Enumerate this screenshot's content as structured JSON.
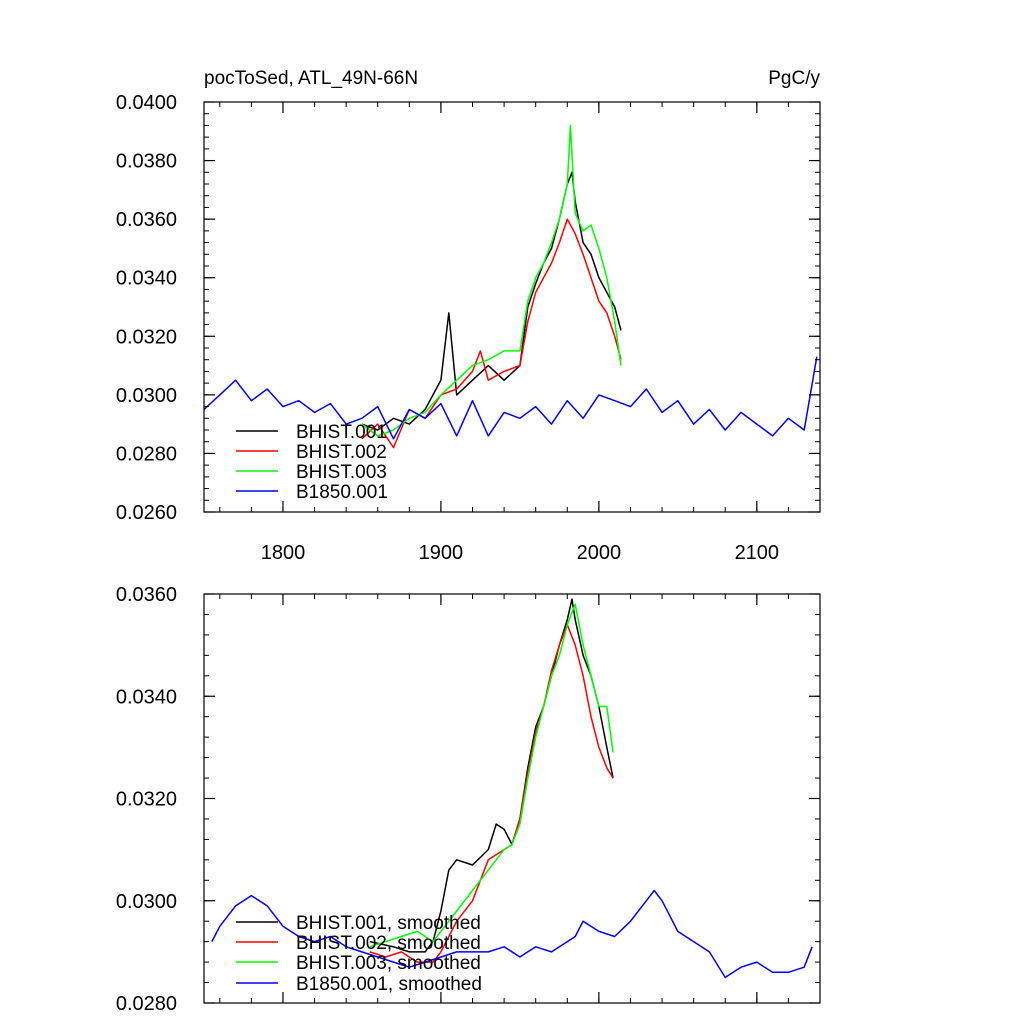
{
  "chart_data": [
    {
      "type": "line",
      "title": "pocToSed, ATL_49N-66N",
      "units": "PgC/y",
      "xlabel": "",
      "ylabel": "",
      "xlim": [
        1750,
        2140
      ],
      "ylim": [
        0.026,
        0.04
      ],
      "x_ticks": [
        1800,
        1900,
        2000,
        2100
      ],
      "y_ticks": [
        0.026,
        0.028,
        0.03,
        0.032,
        0.034,
        0.036,
        0.038,
        0.04
      ],
      "y_tick_labels": [
        "0.0260",
        "0.0280",
        "0.0300",
        "0.0320",
        "0.0340",
        "0.0360",
        "0.0380",
        "0.0400"
      ],
      "legend_position": "bottom-left",
      "series": [
        {
          "name": "BHIST.001",
          "color": "#000000",
          "x": [
            1850,
            1860,
            1870,
            1880,
            1890,
            1900,
            1905,
            1910,
            1920,
            1930,
            1940,
            1950,
            1955,
            1960,
            1965,
            1970,
            1975,
            1980,
            1983,
            1985,
            1990,
            1995,
            2000,
            2005,
            2010,
            2014
          ],
          "y": [
            0.029,
            0.0288,
            0.0292,
            0.029,
            0.0295,
            0.0305,
            0.0328,
            0.03,
            0.0305,
            0.031,
            0.0305,
            0.031,
            0.033,
            0.0338,
            0.0345,
            0.035,
            0.036,
            0.0372,
            0.0376,
            0.0366,
            0.0352,
            0.0348,
            0.034,
            0.0335,
            0.033,
            0.0322
          ]
        },
        {
          "name": "BHIST.002",
          "color": "#ff0000",
          "x": [
            1850,
            1860,
            1870,
            1880,
            1890,
            1900,
            1910,
            1920,
            1925,
            1930,
            1940,
            1950,
            1955,
            1960,
            1965,
            1970,
            1975,
            1980,
            1985,
            1990,
            1995,
            2000,
            2005,
            2010,
            2014
          ],
          "y": [
            0.0285,
            0.029,
            0.0282,
            0.0295,
            0.0292,
            0.03,
            0.0302,
            0.0308,
            0.0315,
            0.0305,
            0.0308,
            0.031,
            0.0325,
            0.0335,
            0.034,
            0.0345,
            0.0352,
            0.036,
            0.0355,
            0.0348,
            0.034,
            0.0332,
            0.0328,
            0.032,
            0.0312
          ]
        },
        {
          "name": "BHIST.003",
          "color": "#00ff00",
          "x": [
            1850,
            1860,
            1870,
            1880,
            1890,
            1900,
            1910,
            1920,
            1930,
            1940,
            1950,
            1955,
            1960,
            1965,
            1970,
            1975,
            1980,
            1982,
            1985,
            1990,
            1995,
            2000,
            2005,
            2010,
            2014
          ],
          "y": [
            0.029,
            0.0286,
            0.0288,
            0.0292,
            0.0294,
            0.03,
            0.0305,
            0.031,
            0.0312,
            0.0315,
            0.0315,
            0.0332,
            0.034,
            0.0345,
            0.0352,
            0.036,
            0.0372,
            0.0392,
            0.0362,
            0.0356,
            0.0358,
            0.035,
            0.034,
            0.0325,
            0.031
          ]
        },
        {
          "name": "B1850.001",
          "color": "#0000ff",
          "x": [
            1750,
            1760,
            1770,
            1780,
            1790,
            1800,
            1810,
            1820,
            1830,
            1840,
            1850,
            1860,
            1870,
            1880,
            1890,
            1900,
            1910,
            1920,
            1930,
            1940,
            1950,
            1960,
            1970,
            1980,
            1990,
            2000,
            2010,
            2020,
            2030,
            2040,
            2050,
            2060,
            2070,
            2080,
            2090,
            2100,
            2110,
            2120,
            2130,
            2138
          ],
          "y": [
            0.0295,
            0.03,
            0.0305,
            0.0298,
            0.0302,
            0.0296,
            0.0298,
            0.0294,
            0.0297,
            0.029,
            0.0292,
            0.0296,
            0.0285,
            0.0295,
            0.0292,
            0.0297,
            0.0286,
            0.0298,
            0.0286,
            0.0294,
            0.0292,
            0.0296,
            0.029,
            0.0298,
            0.0292,
            0.03,
            0.0298,
            0.0296,
            0.0302,
            0.0294,
            0.0298,
            0.029,
            0.0295,
            0.0288,
            0.0294,
            0.029,
            0.0286,
            0.0292,
            0.0288,
            0.0313
          ]
        }
      ]
    },
    {
      "type": "line",
      "title": "",
      "xlabel": "",
      "ylabel": "",
      "xlim": [
        1750,
        2140
      ],
      "ylim": [
        0.028,
        0.036
      ],
      "x_ticks": [
        1800,
        1900,
        2000,
        2100
      ],
      "y_ticks": [
        0.028,
        0.03,
        0.032,
        0.034,
        0.036
      ],
      "y_tick_labels": [
        "0.0280",
        "0.0300",
        "0.0320",
        "0.0340",
        "0.0360"
      ],
      "legend_position": "bottom-left",
      "series": [
        {
          "name": "BHIST.001, smoothed",
          "color": "#000000",
          "x": [
            1855,
            1870,
            1880,
            1890,
            1895,
            1900,
            1905,
            1910,
            1920,
            1930,
            1935,
            1940,
            1945,
            1950,
            1955,
            1960,
            1965,
            1970,
            1975,
            1980,
            1983,
            1985,
            1990,
            1995,
            2000,
            2005,
            2009
          ],
          "y": [
            0.0292,
            0.0291,
            0.029,
            0.029,
            0.0292,
            0.0298,
            0.0306,
            0.0308,
            0.0307,
            0.031,
            0.0315,
            0.0314,
            0.0311,
            0.0316,
            0.0326,
            0.0334,
            0.0338,
            0.0344,
            0.035,
            0.0355,
            0.0359,
            0.0355,
            0.0348,
            0.0344,
            0.0338,
            0.033,
            0.0324
          ]
        },
        {
          "name": "BHIST.002, smoothed",
          "color": "#ff0000",
          "x": [
            1855,
            1865,
            1875,
            1885,
            1895,
            1900,
            1910,
            1920,
            1930,
            1940,
            1945,
            1950,
            1955,
            1960,
            1965,
            1970,
            1975,
            1980,
            1985,
            1990,
            1995,
            2000,
            2005,
            2009
          ],
          "y": [
            0.029,
            0.0289,
            0.029,
            0.0288,
            0.0288,
            0.029,
            0.0296,
            0.03,
            0.0308,
            0.031,
            0.0311,
            0.0316,
            0.0325,
            0.0333,
            0.0338,
            0.0345,
            0.035,
            0.0354,
            0.035,
            0.0344,
            0.0336,
            0.033,
            0.0326,
            0.0324
          ]
        },
        {
          "name": "BHIST.003, smoothed",
          "color": "#00ff00",
          "x": [
            1855,
            1865,
            1875,
            1885,
            1895,
            1900,
            1910,
            1920,
            1930,
            1940,
            1945,
            1950,
            1955,
            1960,
            1965,
            1970,
            1975,
            1980,
            1985,
            1990,
            1995,
            2000,
            2005,
            2009
          ],
          "y": [
            0.0291,
            0.0292,
            0.0293,
            0.0294,
            0.0292,
            0.0294,
            0.0298,
            0.0302,
            0.0306,
            0.031,
            0.0311,
            0.0315,
            0.0324,
            0.0332,
            0.0338,
            0.0344,
            0.0348,
            0.0354,
            0.0358,
            0.035,
            0.0344,
            0.0338,
            0.0338,
            0.0329
          ]
        },
        {
          "name": "B1850.001, smoothed",
          "color": "#0000ff",
          "x": [
            1755,
            1760,
            1765,
            1770,
            1775,
            1780,
            1785,
            1790,
            1795,
            1800,
            1810,
            1820,
            1830,
            1840,
            1850,
            1860,
            1870,
            1880,
            1890,
            1900,
            1910,
            1920,
            1930,
            1940,
            1950,
            1960,
            1970,
            1980,
            1985,
            1990,
            2000,
            2010,
            2020,
            2030,
            2035,
            2040,
            2050,
            2060,
            2070,
            2080,
            2090,
            2100,
            2110,
            2120,
            2130,
            2135
          ],
          "y": [
            0.0292,
            0.0295,
            0.0297,
            0.0299,
            0.03,
            0.0301,
            0.03,
            0.0299,
            0.0297,
            0.0295,
            0.0293,
            0.0292,
            0.0293,
            0.0291,
            0.029,
            0.0289,
            0.0288,
            0.0287,
            0.0288,
            0.0289,
            0.029,
            0.029,
            0.029,
            0.0291,
            0.0289,
            0.0291,
            0.029,
            0.0292,
            0.0293,
            0.0296,
            0.0294,
            0.0293,
            0.0296,
            0.03,
            0.0302,
            0.03,
            0.0294,
            0.0292,
            0.029,
            0.0285,
            0.0287,
            0.0288,
            0.0286,
            0.0286,
            0.0287,
            0.0291
          ]
        }
      ]
    }
  ]
}
